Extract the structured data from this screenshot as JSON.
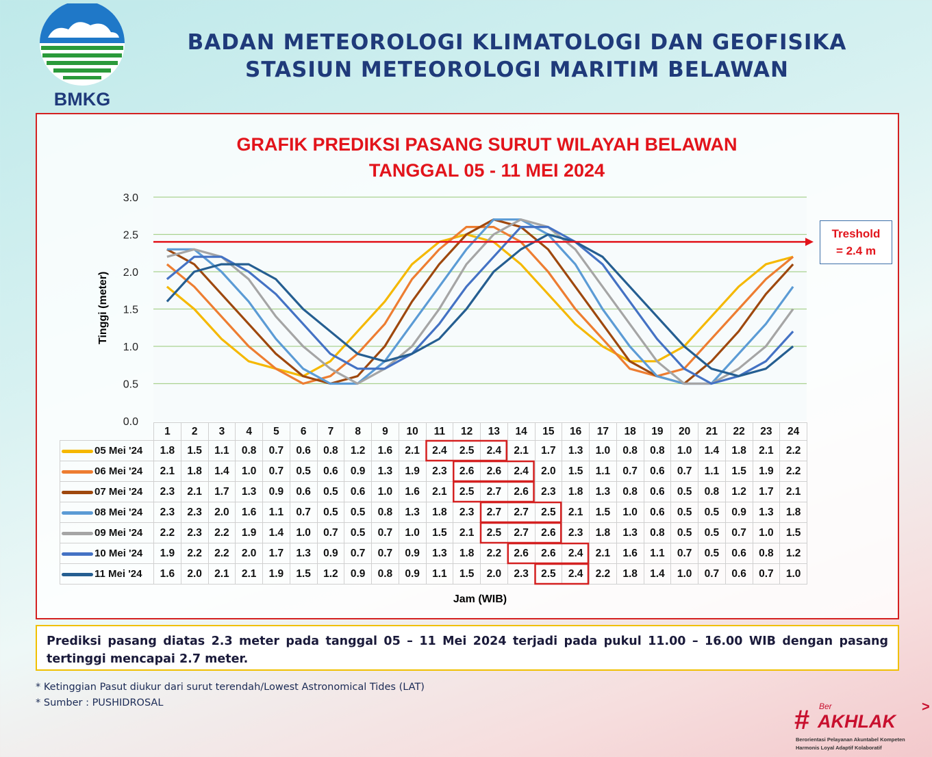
{
  "header": {
    "logo_text": "BMKG",
    "title1": "BADAN METEOROLOGI KLIMATOLOGI DAN GEOFISIKA",
    "title2": "STASIUN METEOROLOGI MARITIM BELAWAN"
  },
  "chart_data": {
    "type": "line",
    "title": "GRAFIK PREDIKSI PASANG SURUT WILAYAH BELAWAN",
    "subtitle": "TANGGAL 05 - 11 MEI 2024",
    "xlabel": "Jam (WIB)",
    "ylabel": "Tinggi (meter)",
    "ylim": [
      0,
      3
    ],
    "yticks": [
      "0.0",
      "0.5",
      "1.0",
      "1.5",
      "2.0",
      "2.5",
      "3.0"
    ],
    "grid": true,
    "x": [
      1,
      2,
      3,
      4,
      5,
      6,
      7,
      8,
      9,
      10,
      11,
      12,
      13,
      14,
      15,
      16,
      17,
      18,
      19,
      20,
      21,
      22,
      23,
      24
    ],
    "threshold": {
      "value": 2.4,
      "label1": "Treshold",
      "label2": "= 2.4 m",
      "color": "#e2141b"
    },
    "series": [
      {
        "name": "05 Mei '24",
        "color": "#f5b800",
        "values": [
          1.8,
          1.5,
          1.1,
          0.8,
          0.7,
          0.6,
          0.8,
          1.2,
          1.6,
          2.1,
          2.4,
          2.5,
          2.4,
          2.1,
          1.7,
          1.3,
          1.0,
          0.8,
          0.8,
          1.0,
          1.4,
          1.8,
          2.1,
          2.2
        ],
        "highlight": [
          11,
          13
        ]
      },
      {
        "name": "06 Mei '24",
        "color": "#ed7d31",
        "values": [
          2.1,
          1.8,
          1.4,
          1.0,
          0.7,
          0.5,
          0.6,
          0.9,
          1.3,
          1.9,
          2.3,
          2.6,
          2.6,
          2.4,
          2.0,
          1.5,
          1.1,
          0.7,
          0.6,
          0.7,
          1.1,
          1.5,
          1.9,
          2.2
        ],
        "highlight": [
          12,
          14
        ]
      },
      {
        "name": "07 Mei '24",
        "color": "#9e480e",
        "values": [
          2.3,
          2.1,
          1.7,
          1.3,
          0.9,
          0.6,
          0.5,
          0.6,
          1.0,
          1.6,
          2.1,
          2.5,
          2.7,
          2.6,
          2.3,
          1.8,
          1.3,
          0.8,
          0.6,
          0.5,
          0.8,
          1.2,
          1.7,
          2.1
        ],
        "highlight": [
          12,
          14
        ]
      },
      {
        "name": "08 Mei '24",
        "color": "#5b9bd5",
        "values": [
          2.3,
          2.3,
          2.0,
          1.6,
          1.1,
          0.7,
          0.5,
          0.5,
          0.8,
          1.3,
          1.8,
          2.3,
          2.7,
          2.7,
          2.5,
          2.1,
          1.5,
          1.0,
          0.6,
          0.5,
          0.5,
          0.9,
          1.3,
          1.8
        ],
        "highlight": [
          13,
          15
        ]
      },
      {
        "name": "09 Mei '24",
        "color": "#a5a5a5",
        "values": [
          2.2,
          2.3,
          2.2,
          1.9,
          1.4,
          1.0,
          0.7,
          0.5,
          0.7,
          1.0,
          1.5,
          2.1,
          2.5,
          2.7,
          2.6,
          2.3,
          1.8,
          1.3,
          0.8,
          0.5,
          0.5,
          0.7,
          1.0,
          1.5
        ],
        "highlight": [
          13,
          15
        ]
      },
      {
        "name": "10 Mei '24",
        "color": "#4472c4",
        "values": [
          1.9,
          2.2,
          2.2,
          2.0,
          1.7,
          1.3,
          0.9,
          0.7,
          0.7,
          0.9,
          1.3,
          1.8,
          2.2,
          2.6,
          2.6,
          2.4,
          2.1,
          1.6,
          1.1,
          0.7,
          0.5,
          0.6,
          0.8,
          1.2
        ],
        "highlight": [
          14,
          16
        ]
      },
      {
        "name": "11 Mei '24",
        "color": "#255e91",
        "values": [
          1.6,
          2.0,
          2.1,
          2.1,
          1.9,
          1.5,
          1.2,
          0.9,
          0.8,
          0.9,
          1.1,
          1.5,
          2.0,
          2.3,
          2.5,
          2.4,
          2.2,
          1.8,
          1.4,
          1.0,
          0.7,
          0.6,
          0.7,
          1.0
        ],
        "highlight": [
          15,
          16
        ]
      }
    ]
  },
  "summary": "Prediksi pasang diatas 2.3 meter pada tanggal 05 – 11 Mei 2024 terjadi pada pukul 11.00 – 16.00 WIB dengan pasang tertinggi mencapai 2.7 meter.",
  "notes": [
    "* Ketinggian Pasut diukur dari surut terendah/Lowest Astronomical Tides (LAT)",
    "* Sumber : PUSHIDROSAL"
  ],
  "footer_logo": {
    "prefix": "Ber",
    "main": "#AKHLAK",
    "line1": "Berorientasi Pelayanan Akuntabel Kompeten",
    "line2": "Harmonis Loyal Adaptif Kolaboratif"
  }
}
